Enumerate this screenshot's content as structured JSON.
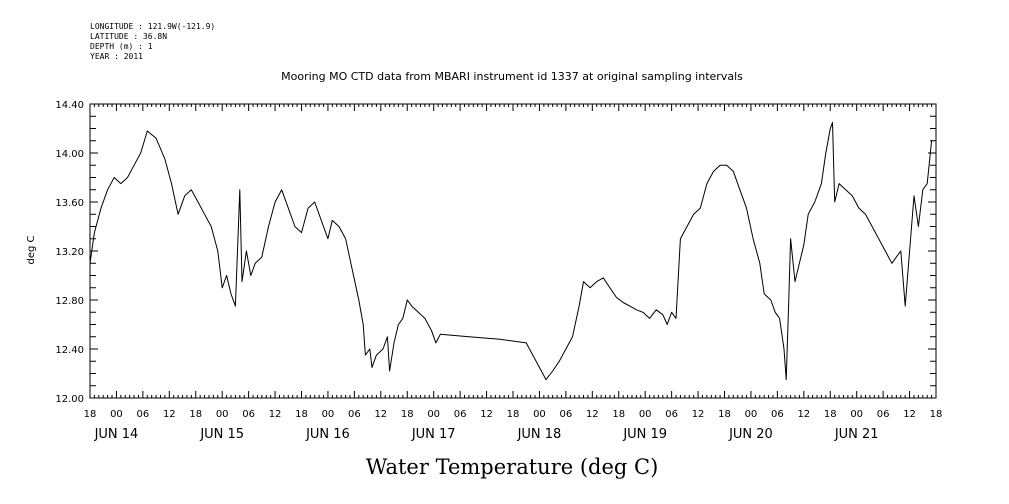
{
  "header": {
    "longitude": "LONGITUDE : 121.9W(-121.9)",
    "latitude": "LATITUDE : 36.8N",
    "depth": "DEPTH (m) : 1",
    "year": "YEAR : 2011"
  },
  "chart_data": {
    "type": "line",
    "title": "Mooring MO CTD data from MBARI instrument id 1337 at original sampling intervals",
    "xlabel": "Water Temperature (deg C)",
    "ylabel": "deg C",
    "xlim": [
      "2011-06-13 18:00",
      "2011-06-21 18:00"
    ],
    "ylim": [
      12.0,
      14.4
    ],
    "yticks": [
      "12.00",
      "12.40",
      "12.80",
      "13.20",
      "13.60",
      "14.00",
      "14.40"
    ],
    "xtick_hour_labels": [
      "18",
      "00",
      "06",
      "12",
      "18",
      "00",
      "06",
      "12",
      "18",
      "00",
      "06",
      "12",
      "18",
      "00",
      "06",
      "12",
      "18",
      "00",
      "06",
      "12",
      "18",
      "00",
      "06",
      "12",
      "18",
      "00",
      "06",
      "12",
      "18",
      "00",
      "06",
      "12",
      "18"
    ],
    "day_labels": [
      {
        "label": "JUN 14",
        "time": "2011-06-14 00:00"
      },
      {
        "label": "JUN 15",
        "time": "2011-06-15 00:00"
      },
      {
        "label": "JUN 16",
        "time": "2011-06-16 00:00"
      },
      {
        "label": "JUN 17",
        "time": "2011-06-17 00:00"
      },
      {
        "label": "JUN 18",
        "time": "2011-06-18 00:00"
      },
      {
        "label": "JUN 19",
        "time": "2011-06-19 00:00"
      },
      {
        "label": "JUN 20",
        "time": "2011-06-20 00:00"
      },
      {
        "label": "JUN 21",
        "time": "2011-06-21 00:00"
      }
    ],
    "grid": false,
    "series": [
      {
        "points": [
          [
            "2011-06-13 18:00",
            13.1
          ],
          [
            "2011-06-13 19:00",
            13.35
          ],
          [
            "2011-06-13 20:30",
            13.55
          ],
          [
            "2011-06-13 22:00",
            13.7
          ],
          [
            "2011-06-13 23:30",
            13.8
          ],
          [
            "2011-06-14 01:00",
            13.75
          ],
          [
            "2011-06-14 02:30",
            13.8
          ],
          [
            "2011-06-14 04:00",
            13.9
          ],
          [
            "2011-06-14 05:30",
            14.0
          ],
          [
            "2011-06-14 07:00",
            14.18
          ],
          [
            "2011-06-14 09:00",
            14.12
          ],
          [
            "2011-06-14 11:00",
            13.95
          ],
          [
            "2011-06-14 12:30",
            13.75
          ],
          [
            "2011-06-14 14:00",
            13.5
          ],
          [
            "2011-06-14 15:30",
            13.65
          ],
          [
            "2011-06-14 17:00",
            13.7
          ],
          [
            "2011-06-14 18:30",
            13.6
          ],
          [
            "2011-06-14 20:00",
            13.5
          ],
          [
            "2011-06-14 21:30",
            13.4
          ],
          [
            "2011-06-14 23:00",
            13.2
          ],
          [
            "2011-06-15 00:00",
            12.9
          ],
          [
            "2011-06-15 01:00",
            13.0
          ],
          [
            "2011-06-15 02:00",
            12.85
          ],
          [
            "2011-06-15 03:00",
            12.75
          ],
          [
            "2011-06-15 04:00",
            13.7
          ],
          [
            "2011-06-15 04:30",
            12.95
          ],
          [
            "2011-06-15 05:30",
            13.2
          ],
          [
            "2011-06-15 06:30",
            13.0
          ],
          [
            "2011-06-15 07:30",
            13.1
          ],
          [
            "2011-06-15 09:00",
            13.15
          ],
          [
            "2011-06-15 10:30",
            13.4
          ],
          [
            "2011-06-15 12:00",
            13.6
          ],
          [
            "2011-06-15 13:30",
            13.7
          ],
          [
            "2011-06-15 15:00",
            13.55
          ],
          [
            "2011-06-15 16:30",
            13.4
          ],
          [
            "2011-06-15 18:00",
            13.35
          ],
          [
            "2011-06-15 19:30",
            13.55
          ],
          [
            "2011-06-15 21:00",
            13.6
          ],
          [
            "2011-06-15 22:30",
            13.45
          ],
          [
            "2011-06-16 00:00",
            13.3
          ],
          [
            "2011-06-16 01:00",
            13.45
          ],
          [
            "2011-06-16 02:30",
            13.4
          ],
          [
            "2011-06-16 04:00",
            13.3
          ],
          [
            "2011-06-16 05:30",
            13.05
          ],
          [
            "2011-06-16 07:00",
            12.8
          ],
          [
            "2011-06-16 08:00",
            12.6
          ],
          [
            "2011-06-16 08:30",
            12.35
          ],
          [
            "2011-06-16 09:30",
            12.4
          ],
          [
            "2011-06-16 10:00",
            12.25
          ],
          [
            "2011-06-16 11:00",
            12.35
          ],
          [
            "2011-06-16 12:30",
            12.4
          ],
          [
            "2011-06-16 13:30",
            12.5
          ],
          [
            "2011-06-16 14:00",
            12.22
          ],
          [
            "2011-06-16 15:00",
            12.45
          ],
          [
            "2011-06-16 16:00",
            12.6
          ],
          [
            "2011-06-16 17:00",
            12.65
          ],
          [
            "2011-06-16 18:00",
            12.8
          ],
          [
            "2011-06-16 19:00",
            12.75
          ],
          [
            "2011-06-16 20:30",
            12.7
          ],
          [
            "2011-06-16 22:00",
            12.65
          ],
          [
            "2011-06-16 23:30",
            12.55
          ],
          [
            "2011-06-17 00:30",
            12.45
          ],
          [
            "2011-06-17 01:30",
            12.52
          ],
          [
            "2011-06-17 08:00",
            12.5
          ],
          [
            "2011-06-17 15:00",
            12.48
          ],
          [
            "2011-06-17 21:00",
            12.45
          ],
          [
            "2011-06-17 22:30",
            12.35
          ],
          [
            "2011-06-18 00:00",
            12.25
          ],
          [
            "2011-06-18 01:30",
            12.15
          ],
          [
            "2011-06-18 03:00",
            12.22
          ],
          [
            "2011-06-18 04:30",
            12.3
          ],
          [
            "2011-06-18 06:00",
            12.4
          ],
          [
            "2011-06-18 07:30",
            12.5
          ],
          [
            "2011-06-18 09:00",
            12.75
          ],
          [
            "2011-06-18 10:00",
            12.95
          ],
          [
            "2011-06-18 11:30",
            12.9
          ],
          [
            "2011-06-18 13:00",
            12.95
          ],
          [
            "2011-06-18 14:30",
            12.98
          ],
          [
            "2011-06-18 16:00",
            12.9
          ],
          [
            "2011-06-18 17:30",
            12.82
          ],
          [
            "2011-06-18 19:00",
            12.78
          ],
          [
            "2011-06-18 20:30",
            12.75
          ],
          [
            "2011-06-18 22:00",
            12.72
          ],
          [
            "2011-06-18 23:30",
            12.7
          ],
          [
            "2011-06-19 01:00",
            12.65
          ],
          [
            "2011-06-19 02:30",
            12.72
          ],
          [
            "2011-06-19 04:00",
            12.68
          ],
          [
            "2011-06-19 05:00",
            12.6
          ],
          [
            "2011-06-19 06:00",
            12.7
          ],
          [
            "2011-06-19 07:00",
            12.65
          ],
          [
            "2011-06-19 08:00",
            13.3
          ],
          [
            "2011-06-19 09:30",
            13.4
          ],
          [
            "2011-06-19 11:00",
            13.5
          ],
          [
            "2011-06-19 12:30",
            13.55
          ],
          [
            "2011-06-19 14:00",
            13.75
          ],
          [
            "2011-06-19 15:30",
            13.85
          ],
          [
            "2011-06-19 17:00",
            13.9
          ],
          [
            "2011-06-19 18:30",
            13.9
          ],
          [
            "2011-06-19 20:00",
            13.85
          ],
          [
            "2011-06-19 21:30",
            13.7
          ],
          [
            "2011-06-19 23:00",
            13.55
          ],
          [
            "2011-06-20 00:30",
            13.3
          ],
          [
            "2011-06-20 02:00",
            13.1
          ],
          [
            "2011-06-20 03:00",
            12.85
          ],
          [
            "2011-06-20 04:30",
            12.8
          ],
          [
            "2011-06-20 05:30",
            12.7
          ],
          [
            "2011-06-20 06:30",
            12.65
          ],
          [
            "2011-06-20 07:30",
            12.4
          ],
          [
            "2011-06-20 08:00",
            12.15
          ],
          [
            "2011-06-20 08:30",
            12.7
          ],
          [
            "2011-06-20 09:00",
            13.3
          ],
          [
            "2011-06-20 10:00",
            12.95
          ],
          [
            "2011-06-20 11:00",
            13.1
          ],
          [
            "2011-06-20 12:00",
            13.25
          ],
          [
            "2011-06-20 13:00",
            13.5
          ],
          [
            "2011-06-20 14:30",
            13.6
          ],
          [
            "2011-06-20 16:00",
            13.75
          ],
          [
            "2011-06-20 17:00",
            14.0
          ],
          [
            "2011-06-20 18:00",
            14.2
          ],
          [
            "2011-06-20 18:30",
            14.25
          ],
          [
            "2011-06-20 19:00",
            13.6
          ],
          [
            "2011-06-20 20:00",
            13.75
          ],
          [
            "2011-06-20 21:30",
            13.7
          ],
          [
            "2011-06-20 23:00",
            13.65
          ],
          [
            "2011-06-21 00:30",
            13.55
          ],
          [
            "2011-06-21 02:00",
            13.5
          ],
          [
            "2011-06-21 03:30",
            13.4
          ],
          [
            "2011-06-21 05:00",
            13.3
          ],
          [
            "2011-06-21 06:30",
            13.2
          ],
          [
            "2011-06-21 08:00",
            13.1
          ],
          [
            "2011-06-21 09:00",
            13.15
          ],
          [
            "2011-06-21 10:00",
            13.2
          ],
          [
            "2011-06-21 11:00",
            12.75
          ],
          [
            "2011-06-21 12:00",
            13.2
          ],
          [
            "2011-06-21 13:00",
            13.65
          ],
          [
            "2011-06-21 14:00",
            13.4
          ],
          [
            "2011-06-21 15:00",
            13.7
          ],
          [
            "2011-06-21 16:00",
            13.75
          ],
          [
            "2011-06-21 17:00",
            14.1
          ]
        ]
      }
    ]
  }
}
